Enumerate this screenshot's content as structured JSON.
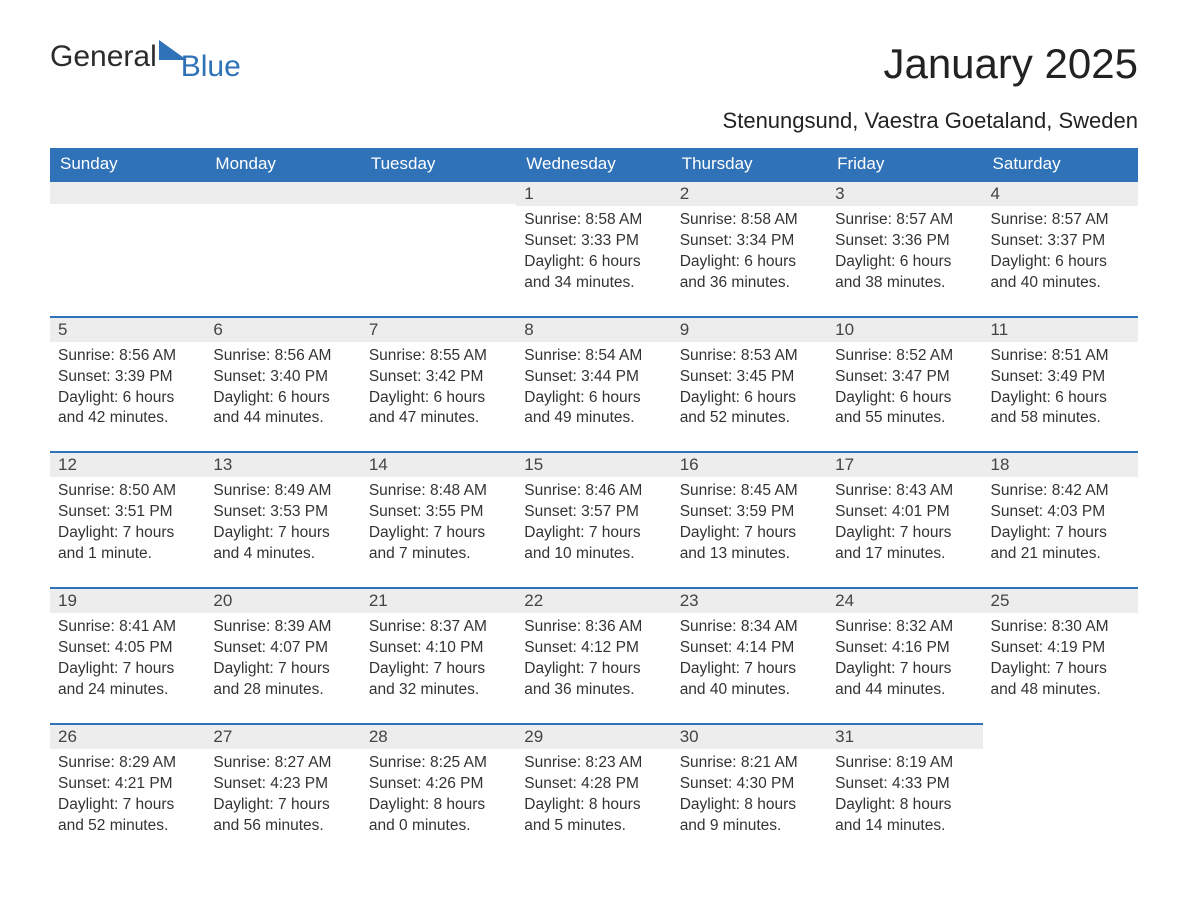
{
  "logo": {
    "text_general": "General",
    "text_blue": "Blue"
  },
  "header": {
    "month_title": "January 2025",
    "location": "Stenungsund, Vaestra Goetaland, Sweden"
  },
  "colors": {
    "header_bg": "#2f72b8",
    "header_text": "#ffffff",
    "daynum_bg": "#ededed",
    "rule": "#2f72b8",
    "body_text": "#333333",
    "page_bg": "#ffffff"
  },
  "typography": {
    "month_fontsize": 42,
    "location_fontsize": 22,
    "weekday_fontsize": 17,
    "daynum_fontsize": 17,
    "body_fontsize": 15.5
  },
  "weekdays": [
    "Sunday",
    "Monday",
    "Tuesday",
    "Wednesday",
    "Thursday",
    "Friday",
    "Saturday"
  ],
  "weeks": [
    [
      null,
      null,
      null,
      {
        "n": "1",
        "sunrise": "Sunrise: 8:58 AM",
        "sunset": "Sunset: 3:33 PM",
        "day1": "Daylight: 6 hours",
        "day2": "and 34 minutes."
      },
      {
        "n": "2",
        "sunrise": "Sunrise: 8:58 AM",
        "sunset": "Sunset: 3:34 PM",
        "day1": "Daylight: 6 hours",
        "day2": "and 36 minutes."
      },
      {
        "n": "3",
        "sunrise": "Sunrise: 8:57 AM",
        "sunset": "Sunset: 3:36 PM",
        "day1": "Daylight: 6 hours",
        "day2": "and 38 minutes."
      },
      {
        "n": "4",
        "sunrise": "Sunrise: 8:57 AM",
        "sunset": "Sunset: 3:37 PM",
        "day1": "Daylight: 6 hours",
        "day2": "and 40 minutes."
      }
    ],
    [
      {
        "n": "5",
        "sunrise": "Sunrise: 8:56 AM",
        "sunset": "Sunset: 3:39 PM",
        "day1": "Daylight: 6 hours",
        "day2": "and 42 minutes."
      },
      {
        "n": "6",
        "sunrise": "Sunrise: 8:56 AM",
        "sunset": "Sunset: 3:40 PM",
        "day1": "Daylight: 6 hours",
        "day2": "and 44 minutes."
      },
      {
        "n": "7",
        "sunrise": "Sunrise: 8:55 AM",
        "sunset": "Sunset: 3:42 PM",
        "day1": "Daylight: 6 hours",
        "day2": "and 47 minutes."
      },
      {
        "n": "8",
        "sunrise": "Sunrise: 8:54 AM",
        "sunset": "Sunset: 3:44 PM",
        "day1": "Daylight: 6 hours",
        "day2": "and 49 minutes."
      },
      {
        "n": "9",
        "sunrise": "Sunrise: 8:53 AM",
        "sunset": "Sunset: 3:45 PM",
        "day1": "Daylight: 6 hours",
        "day2": "and 52 minutes."
      },
      {
        "n": "10",
        "sunrise": "Sunrise: 8:52 AM",
        "sunset": "Sunset: 3:47 PM",
        "day1": "Daylight: 6 hours",
        "day2": "and 55 minutes."
      },
      {
        "n": "11",
        "sunrise": "Sunrise: 8:51 AM",
        "sunset": "Sunset: 3:49 PM",
        "day1": "Daylight: 6 hours",
        "day2": "and 58 minutes."
      }
    ],
    [
      {
        "n": "12",
        "sunrise": "Sunrise: 8:50 AM",
        "sunset": "Sunset: 3:51 PM",
        "day1": "Daylight: 7 hours",
        "day2": "and 1 minute."
      },
      {
        "n": "13",
        "sunrise": "Sunrise: 8:49 AM",
        "sunset": "Sunset: 3:53 PM",
        "day1": "Daylight: 7 hours",
        "day2": "and 4 minutes."
      },
      {
        "n": "14",
        "sunrise": "Sunrise: 8:48 AM",
        "sunset": "Sunset: 3:55 PM",
        "day1": "Daylight: 7 hours",
        "day2": "and 7 minutes."
      },
      {
        "n": "15",
        "sunrise": "Sunrise: 8:46 AM",
        "sunset": "Sunset: 3:57 PM",
        "day1": "Daylight: 7 hours",
        "day2": "and 10 minutes."
      },
      {
        "n": "16",
        "sunrise": "Sunrise: 8:45 AM",
        "sunset": "Sunset: 3:59 PM",
        "day1": "Daylight: 7 hours",
        "day2": "and 13 minutes."
      },
      {
        "n": "17",
        "sunrise": "Sunrise: 8:43 AM",
        "sunset": "Sunset: 4:01 PM",
        "day1": "Daylight: 7 hours",
        "day2": "and 17 minutes."
      },
      {
        "n": "18",
        "sunrise": "Sunrise: 8:42 AM",
        "sunset": "Sunset: 4:03 PM",
        "day1": "Daylight: 7 hours",
        "day2": "and 21 minutes."
      }
    ],
    [
      {
        "n": "19",
        "sunrise": "Sunrise: 8:41 AM",
        "sunset": "Sunset: 4:05 PM",
        "day1": "Daylight: 7 hours",
        "day2": "and 24 minutes."
      },
      {
        "n": "20",
        "sunrise": "Sunrise: 8:39 AM",
        "sunset": "Sunset: 4:07 PM",
        "day1": "Daylight: 7 hours",
        "day2": "and 28 minutes."
      },
      {
        "n": "21",
        "sunrise": "Sunrise: 8:37 AM",
        "sunset": "Sunset: 4:10 PM",
        "day1": "Daylight: 7 hours",
        "day2": "and 32 minutes."
      },
      {
        "n": "22",
        "sunrise": "Sunrise: 8:36 AM",
        "sunset": "Sunset: 4:12 PM",
        "day1": "Daylight: 7 hours",
        "day2": "and 36 minutes."
      },
      {
        "n": "23",
        "sunrise": "Sunrise: 8:34 AM",
        "sunset": "Sunset: 4:14 PM",
        "day1": "Daylight: 7 hours",
        "day2": "and 40 minutes."
      },
      {
        "n": "24",
        "sunrise": "Sunrise: 8:32 AM",
        "sunset": "Sunset: 4:16 PM",
        "day1": "Daylight: 7 hours",
        "day2": "and 44 minutes."
      },
      {
        "n": "25",
        "sunrise": "Sunrise: 8:30 AM",
        "sunset": "Sunset: 4:19 PM",
        "day1": "Daylight: 7 hours",
        "day2": "and 48 minutes."
      }
    ],
    [
      {
        "n": "26",
        "sunrise": "Sunrise: 8:29 AM",
        "sunset": "Sunset: 4:21 PM",
        "day1": "Daylight: 7 hours",
        "day2": "and 52 minutes."
      },
      {
        "n": "27",
        "sunrise": "Sunrise: 8:27 AM",
        "sunset": "Sunset: 4:23 PM",
        "day1": "Daylight: 7 hours",
        "day2": "and 56 minutes."
      },
      {
        "n": "28",
        "sunrise": "Sunrise: 8:25 AM",
        "sunset": "Sunset: 4:26 PM",
        "day1": "Daylight: 8 hours",
        "day2": "and 0 minutes."
      },
      {
        "n": "29",
        "sunrise": "Sunrise: 8:23 AM",
        "sunset": "Sunset: 4:28 PM",
        "day1": "Daylight: 8 hours",
        "day2": "and 5 minutes."
      },
      {
        "n": "30",
        "sunrise": "Sunrise: 8:21 AM",
        "sunset": "Sunset: 4:30 PM",
        "day1": "Daylight: 8 hours",
        "day2": "and 9 minutes."
      },
      {
        "n": "31",
        "sunrise": "Sunrise: 8:19 AM",
        "sunset": "Sunset: 4:33 PM",
        "day1": "Daylight: 8 hours",
        "day2": "and 14 minutes."
      },
      null
    ]
  ]
}
